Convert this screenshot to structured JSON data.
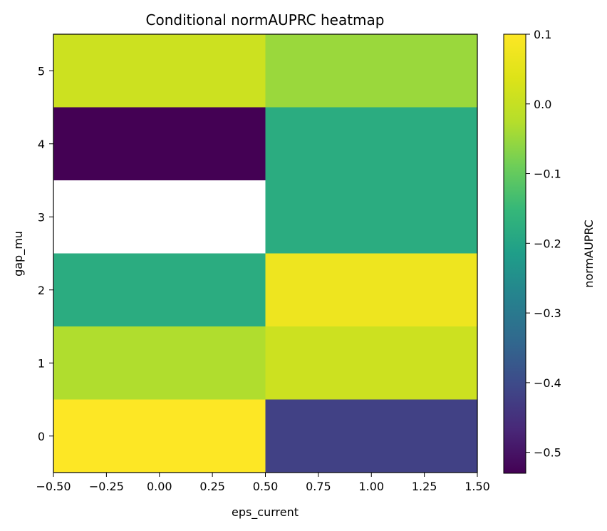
{
  "chart_data": {
    "type": "heatmap",
    "title": "Conditional normAUPRC heatmap",
    "xlabel": "eps_current",
    "ylabel": "gap_mu",
    "xlim": [
      -0.5,
      1.5
    ],
    "ylim": [
      -0.5,
      5.5
    ],
    "x_ticks": [
      "−0.50",
      "−0.25",
      "0.00",
      "0.25",
      "0.50",
      "0.75",
      "1.00",
      "1.25",
      "1.50"
    ],
    "y_ticks": [
      "0",
      "1",
      "2",
      "3",
      "4",
      "5"
    ],
    "x_categories": [
      0,
      1
    ],
    "y_categories": [
      0,
      1,
      2,
      3,
      4,
      5
    ],
    "cells": [
      [
        0.1,
        -0.42
      ],
      [
        -0.03,
        0.01
      ],
      [
        -0.18,
        0.07
      ],
      [
        null,
        -0.18
      ],
      [
        -0.53,
        -0.18
      ],
      [
        0.01,
        -0.05
      ]
    ],
    "colormap": "viridis",
    "vmin": -0.53,
    "vmax": 0.1,
    "colorbar": {
      "label": "normAUPRC",
      "ticks": [
        "0.1",
        "0.0",
        "−0.1",
        "−0.2",
        "−0.3",
        "−0.4",
        "−0.5"
      ],
      "tick_values": [
        0.1,
        0.0,
        -0.1,
        -0.2,
        -0.3,
        -0.4,
        -0.5
      ]
    },
    "missing_color": "#ffffff",
    "grid": false
  }
}
